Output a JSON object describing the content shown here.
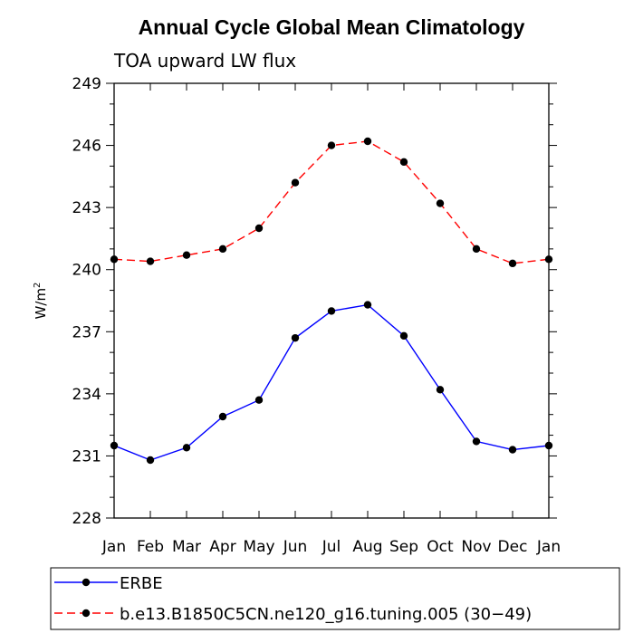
{
  "chart_data": {
    "type": "line",
    "title": "Annual Cycle Global Mean Climatology",
    "subtitle": "TOA upward LW flux",
    "ylabel_base": "W/m",
    "ylabel_sup": "2",
    "xlabel": "",
    "categories": [
      "Jan",
      "Feb",
      "Mar",
      "Apr",
      "May",
      "Jun",
      "Jul",
      "Aug",
      "Sep",
      "Oct",
      "Nov",
      "Dec",
      "Jan"
    ],
    "yticks": [
      228,
      231,
      234,
      237,
      240,
      243,
      246,
      249
    ],
    "ylim": [
      228,
      249
    ],
    "series": [
      {
        "name": "ERBE",
        "color": "#0000ff",
        "dash": "solid",
        "values": [
          231.5,
          230.8,
          231.4,
          232.9,
          233.7,
          236.7,
          238.0,
          238.3,
          236.8,
          234.2,
          231.7,
          231.3,
          231.5
        ]
      },
      {
        "name": "b.e13.B1850C5CN.ne120_g16.tuning.005 (30−49)",
        "color": "#ff0000",
        "dash": "dashed",
        "values": [
          240.5,
          240.4,
          240.7,
          241.0,
          242.0,
          244.2,
          246.0,
          246.2,
          245.2,
          243.2,
          241.0,
          240.3,
          240.5
        ]
      }
    ]
  }
}
